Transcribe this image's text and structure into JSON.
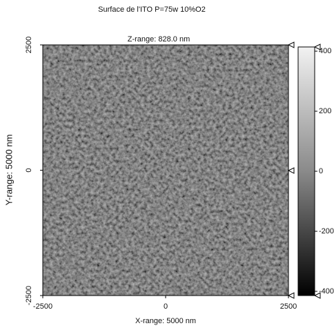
{
  "chart_data": {
    "type": "heatmap",
    "title": "Surface de l'ITO P=75w 10%O2",
    "subtitle": "Z-range: 828.0 nm",
    "x_label": "X-range: 5000 nm",
    "y_label": "Y-range: 5000 nm",
    "xlim": [
      -2500,
      2500
    ],
    "xticks": [
      -2500,
      0,
      2500
    ],
    "ylim": [
      -2500,
      2500
    ],
    "yticks": [
      -2500,
      0,
      2500
    ],
    "zlim": [
      -414,
      414
    ],
    "zticks": [
      -400,
      -200,
      0,
      200,
      400
    ]
  }
}
